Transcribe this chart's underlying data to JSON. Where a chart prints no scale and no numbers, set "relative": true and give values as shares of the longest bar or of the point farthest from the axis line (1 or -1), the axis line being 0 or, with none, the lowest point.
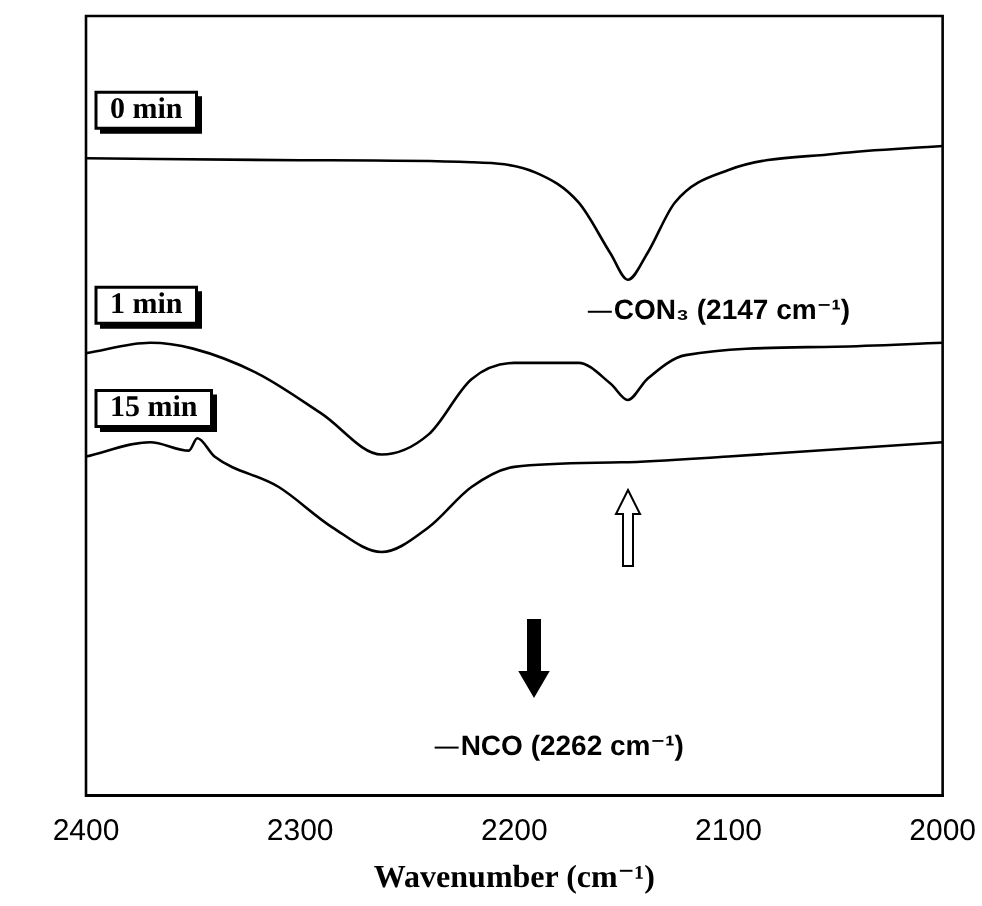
{
  "chart_data": {
    "type": "line",
    "relative": true,
    "xlabel": "Wavenumber (cm⁻¹)",
    "xlim": [
      2400,
      2000
    ],
    "xticks": [
      2400,
      2300,
      2200,
      2100,
      2000
    ],
    "grid": false,
    "legend": false,
    "marker": "none",
    "line_style": "solid",
    "series": [
      {
        "name": "0 min",
        "color": "#000000",
        "x": [
          2400,
          2300,
          2220,
          2190,
          2170,
          2155,
          2147,
          2138,
          2125,
          2100,
          2050,
          2000
        ],
        "values": [
          0.981,
          0.978,
          0.975,
          0.959,
          0.913,
          0.834,
          0.794,
          0.834,
          0.913,
          0.963,
          0.988,
          1.0
        ]
      },
      {
        "name": "1 min",
        "color": "#000000",
        "x": [
          2400,
          2370,
          2350,
          2320,
          2290,
          2262,
          2240,
          2220,
          2200,
          2170,
          2155,
          2147,
          2138,
          2120,
          2050,
          2000
        ],
        "values": [
          0.681,
          0.697,
          0.688,
          0.65,
          0.588,
          0.525,
          0.556,
          0.641,
          0.666,
          0.666,
          0.634,
          0.609,
          0.641,
          0.678,
          0.691,
          0.697
        ]
      },
      {
        "name": "15 min",
        "color": "#000000",
        "x": [
          2400,
          2370,
          2352,
          2348,
          2340,
          2310,
          2285,
          2262,
          2240,
          2220,
          2200,
          2150,
          2100,
          2000
        ],
        "values": [
          0.522,
          0.544,
          0.531,
          0.55,
          0.522,
          0.475,
          0.413,
          0.375,
          0.413,
          0.475,
          0.506,
          0.513,
          0.522,
          0.544
        ]
      }
    ],
    "annotations": [
      {
        "text": "CON₃ (2147 cm⁻¹)",
        "x": 2147,
        "y": 0.794
      },
      "NCO (2262 cm⁻¹)"
    ]
  }
}
